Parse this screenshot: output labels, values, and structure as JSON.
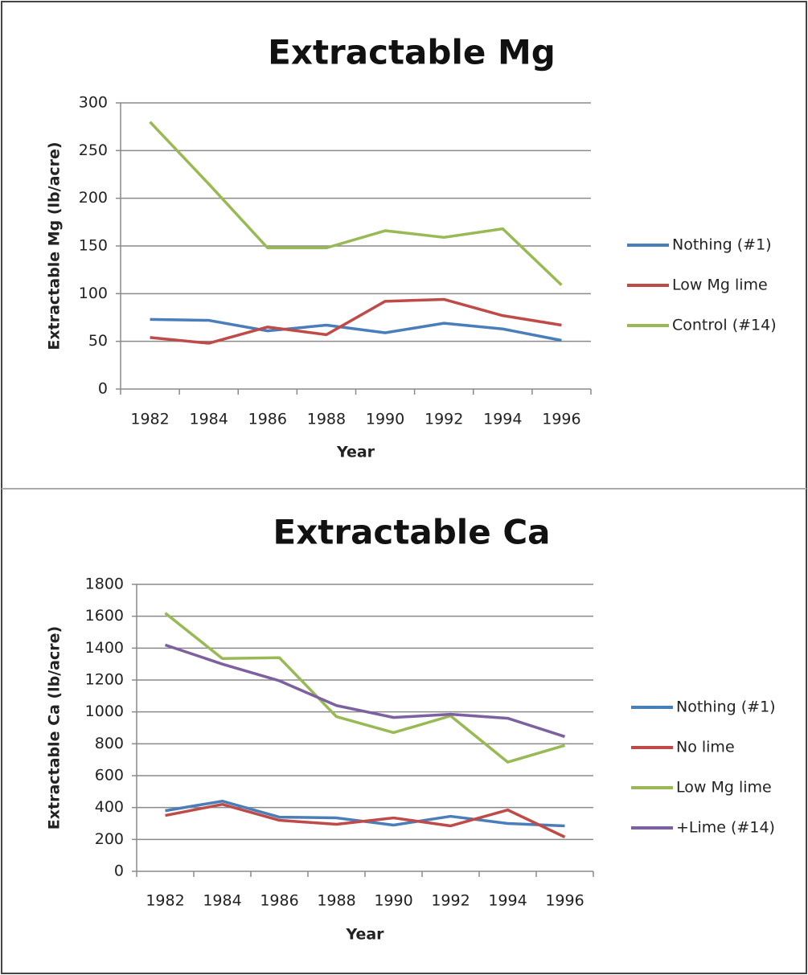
{
  "chart_data": [
    {
      "type": "line",
      "title": "Extractable Mg",
      "xlabel": "Year",
      "ylabel": "Extractable Mg (lb/acre)",
      "categories": [
        "1982",
        "1984",
        "1986",
        "1988",
        "1990",
        "1992",
        "1994",
        "1996"
      ],
      "series": [
        {
          "name": "Nothing (#1)",
          "color": "#4a7ebb",
          "values": [
            73,
            72,
            61,
            67,
            59,
            69,
            63,
            51
          ]
        },
        {
          "name": "Low Mg lime",
          "color": "#be4b48",
          "values": [
            54,
            48,
            65,
            57,
            92,
            94,
            77,
            67
          ]
        },
        {
          "name": "Control (#14)",
          "color": "#98b954",
          "values": [
            280,
            215,
            148,
            148,
            166,
            159,
            168,
            109
          ]
        }
      ],
      "ylim": [
        0,
        300
      ],
      "yticks": [
        0,
        50,
        100,
        150,
        200,
        250,
        300
      ],
      "grid": true,
      "legend": "right"
    },
    {
      "type": "line",
      "title": "Extractable Ca",
      "xlabel": "Year",
      "ylabel": "Extractable Ca (lb/acre)",
      "categories": [
        "1982",
        "1984",
        "1986",
        "1988",
        "1990",
        "1992",
        "1994",
        "1996"
      ],
      "series": [
        {
          "name": "Nothing (#1)",
          "color": "#4a7ebb",
          "values": [
            380,
            440,
            340,
            335,
            290,
            345,
            300,
            285
          ]
        },
        {
          "name": "No lime",
          "color": "#be4b48",
          "values": [
            350,
            420,
            320,
            295,
            335,
            285,
            385,
            215
          ]
        },
        {
          "name": "Low Mg lime",
          "color": "#98b954",
          "values": [
            1620,
            1335,
            1340,
            970,
            870,
            975,
            685,
            790
          ]
        },
        {
          "name": "+Lime (#14)",
          "color": "#7d60a0",
          "values": [
            1420,
            1300,
            1195,
            1040,
            965,
            985,
            960,
            845
          ]
        }
      ],
      "ylim": [
        0,
        1800
      ],
      "yticks": [
        0,
        200,
        400,
        600,
        800,
        1000,
        1200,
        1400,
        1600,
        1800
      ],
      "grid": true,
      "legend": "right"
    }
  ]
}
